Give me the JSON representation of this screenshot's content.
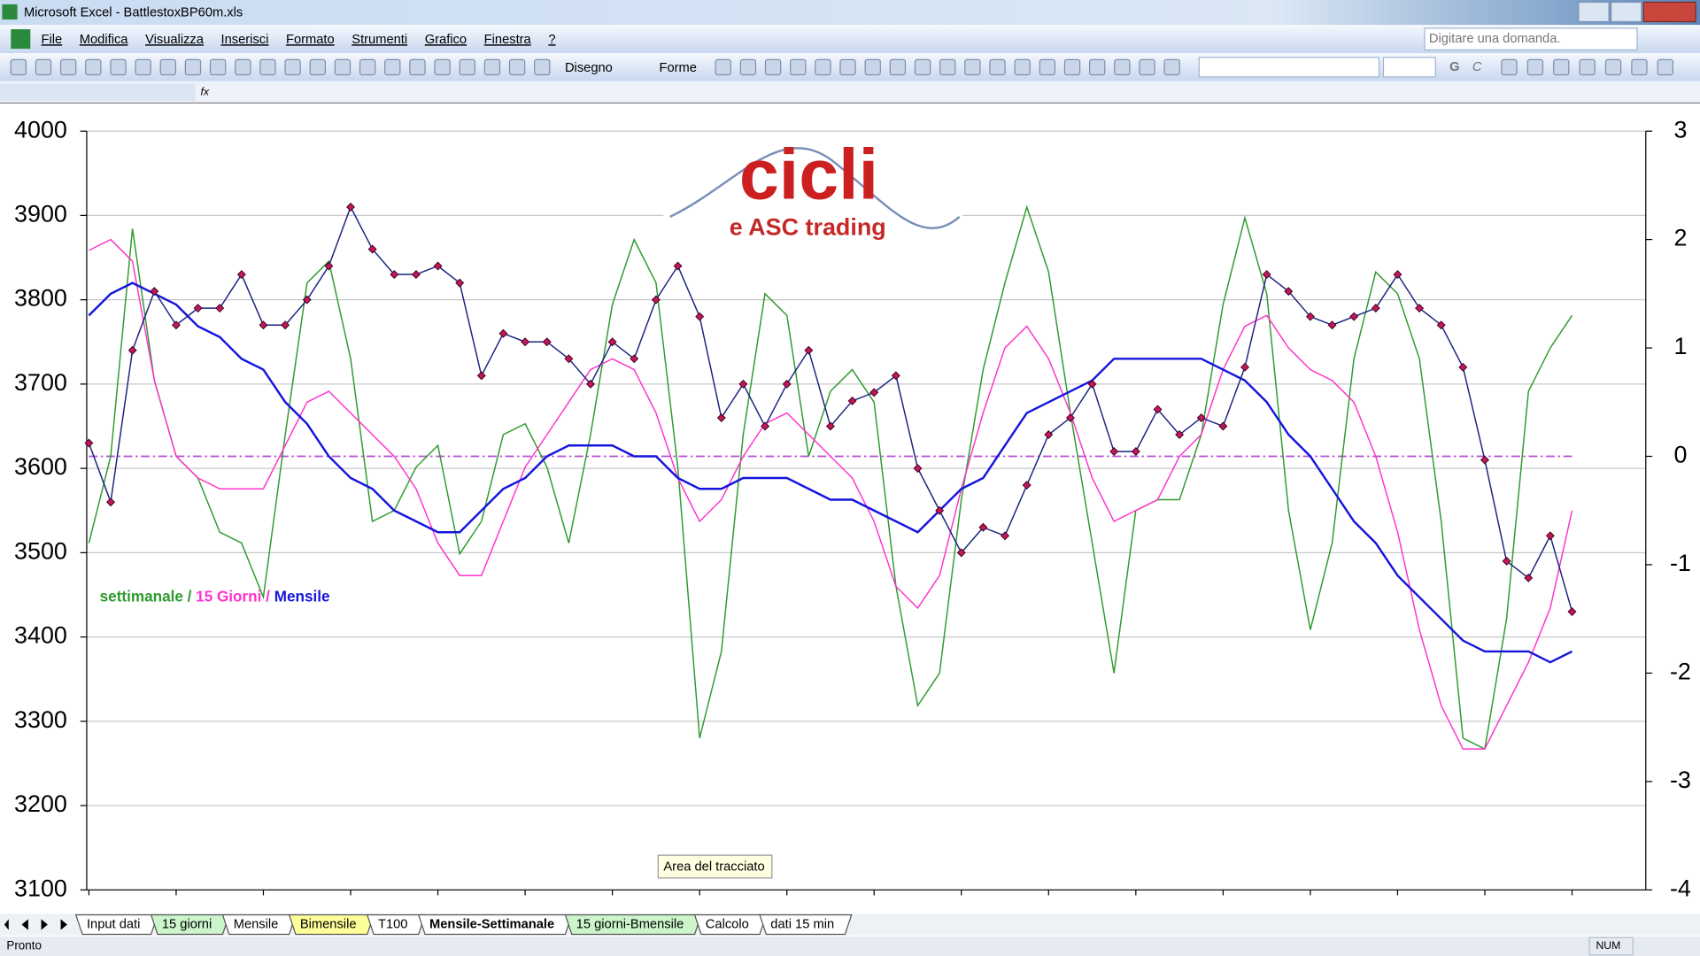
{
  "window": {
    "title": "Microsoft Excel - BattlestoxBP60m.xls"
  },
  "menu": [
    "File",
    "Modifica",
    "Visualizza",
    "Inserisci",
    "Formato",
    "Strumenti",
    "Grafico",
    "Finestra",
    "?"
  ],
  "help_box": "Digitare una domanda.",
  "toolbar": {
    "drawing": "Disegno",
    "shapes": "Forme",
    "bold": "G",
    "italic": "C"
  },
  "formula_bar": {
    "fx": "fx"
  },
  "chart_data": {
    "type": "line",
    "categories": [
      null,
      null,
      null,
      null,
      null,
      null,
      null,
      null,
      null,
      null,
      null,
      null,
      null,
      null,
      null,
      null,
      null,
      null,
      null,
      null,
      null,
      null,
      null,
      null,
      null,
      null,
      null,
      null,
      null,
      null,
      null,
      null,
      null,
      null,
      null,
      null,
      null,
      null,
      null,
      null,
      null,
      null,
      null,
      null,
      null,
      null,
      null,
      null,
      null,
      null,
      null,
      null,
      null,
      null,
      null,
      null,
      null,
      null,
      null,
      null,
      null,
      null,
      null,
      null,
      null,
      null,
      null,
      null,
      null
    ],
    "ylim": [
      3100,
      4000
    ],
    "yticks": [
      3100,
      3200,
      3300,
      3400,
      3500,
      3600,
      3700,
      3800,
      3900,
      4000
    ],
    "y2lim": [
      -4,
      3
    ],
    "y2ticks": [
      -4,
      -3,
      -2,
      -1,
      0,
      1,
      2,
      3
    ],
    "grid": true,
    "series": [
      {
        "color": "#1a237e",
        "marker_color": "#c2185b",
        "values": [
          3630,
          3560,
          3740,
          3810,
          3770,
          3790,
          3790,
          3830,
          3770,
          3770,
          3800,
          3840,
          3910,
          3860,
          3830,
          3830,
          3840,
          3820,
          3710,
          3760,
          3750,
          3750,
          3730,
          3700,
          3750,
          3730,
          3800,
          3840,
          3780,
          3660,
          3700,
          3650,
          3700,
          3740,
          3650,
          3680,
          3690,
          3710,
          3600,
          3550,
          3500,
          3530,
          3520,
          3580,
          3640,
          3660,
          3700,
          3620,
          3620,
          3670,
          3640,
          3660,
          3650,
          3720,
          3830,
          3810,
          3780,
          3770,
          3780,
          3790,
          3830,
          3790,
          3770,
          3720,
          3610,
          3490,
          3470,
          3520,
          3430
        ]
      },
      {
        "name": "settimanale",
        "color": "#2e9a2e",
        "axis": "y2",
        "values": [
          -0.8,
          0,
          2.1,
          0.7,
          0,
          -0.2,
          -0.7,
          -0.8,
          -1.3,
          0.2,
          1.6,
          1.8,
          0.9,
          -0.6,
          -0.5,
          -0.1,
          0.1,
          -0.9,
          -0.6,
          0.2,
          0.3,
          -0.1,
          -0.8,
          0.2,
          1.4,
          2,
          1.6,
          -0.1,
          -2.6,
          -1.8,
          0.2,
          1.5,
          1.3,
          0,
          0.6,
          0.8,
          0.5,
          -1.2,
          -2.3,
          -2,
          -0.4,
          0.8,
          1.6,
          2.3,
          1.7,
          0.4,
          -0.8,
          -2,
          -0.5,
          -0.4,
          -0.4,
          0.2,
          1.4,
          2.2,
          1.5,
          -0.5,
          -1.6,
          -0.8,
          0.9,
          1.7,
          1.5,
          0.9,
          -0.6,
          -2.6,
          -2.7,
          -1.5,
          0.6,
          1,
          1.3
        ]
      },
      {
        "name": "15 Giorni",
        "color": "#ff33cc",
        "axis": "y2",
        "values": [
          1.9,
          2,
          1.8,
          0.7,
          0,
          -0.2,
          -0.3,
          -0.3,
          -0.3,
          0.1,
          0.5,
          0.6,
          0.4,
          0.2,
          0,
          -0.3,
          -0.8,
          -1.1,
          -1.1,
          -0.6,
          -0.1,
          0.2,
          0.5,
          0.8,
          0.9,
          0.8,
          0.4,
          -0.2,
          -0.6,
          -0.4,
          0,
          0.3,
          0.4,
          0.2,
          0,
          -0.2,
          -0.6,
          -1.2,
          -1.4,
          -1.1,
          -0.3,
          0.4,
          1,
          1.2,
          0.9,
          0.4,
          -0.2,
          -0.6,
          -0.5,
          -0.4,
          0,
          0.2,
          0.8,
          1.2,
          1.3,
          1,
          0.8,
          0.7,
          0.5,
          0,
          -0.7,
          -1.6,
          -2.3,
          -2.7,
          -2.7,
          -2.3,
          -1.9,
          -1.4,
          -0.5
        ]
      },
      {
        "name": "Mensile",
        "color": "#1515dd",
        "axis": "y2",
        "values": [
          1.3,
          1.5,
          1.6,
          1.5,
          1.4,
          1.2,
          1.1,
          0.9,
          0.8,
          0.5,
          0.3,
          0,
          -0.2,
          -0.3,
          -0.5,
          -0.6,
          -0.7,
          -0.7,
          -0.5,
          -0.3,
          -0.2,
          0,
          0.1,
          0.1,
          0.1,
          0,
          0,
          -0.2,
          -0.3,
          -0.3,
          -0.2,
          -0.2,
          -0.2,
          -0.3,
          -0.4,
          -0.4,
          -0.5,
          -0.6,
          -0.7,
          -0.5,
          -0.3,
          -0.2,
          0.1,
          0.4,
          0.5,
          0.6,
          0.7,
          0.9,
          0.9,
          0.9,
          0.9,
          0.9,
          0.8,
          0.7,
          0.5,
          0.2,
          0,
          -0.3,
          -0.6,
          -0.8,
          -1.1,
          -1.3,
          -1.5,
          -1.7,
          -1.8,
          -1.8,
          -1.8,
          -1.9,
          -1.8
        ]
      }
    ],
    "reference_line": {
      "value": 0,
      "axis": "y2",
      "color": "#b44fd0"
    },
    "legend_separator": "/",
    "logo": {
      "title": "cicli",
      "subtitle": "e ASC trading"
    }
  },
  "tooltip": "Area del tracciato",
  "sheet_tabs": [
    {
      "label": "Input dati",
      "color": "#ffffff"
    },
    {
      "label": "15 giorni",
      "color": "#ccf5cc"
    },
    {
      "label": "Mensile",
      "color": "#ffffff"
    },
    {
      "label": "Bimensile",
      "color": "#ffff99"
    },
    {
      "label": "T100",
      "color": "#ffffff"
    },
    {
      "label": "Mensile-Settimanale",
      "color": "#ffffff"
    },
    {
      "label": "15 giorni-Bmensile",
      "color": "#ccf5cc"
    },
    {
      "label": "Calcolo",
      "color": "#ffffff"
    },
    {
      "label": "dati 15 min",
      "color": "#ffffff"
    }
  ],
  "active_tab": 5,
  "status_bar": {
    "left": "Pronto",
    "right": "NUM"
  }
}
